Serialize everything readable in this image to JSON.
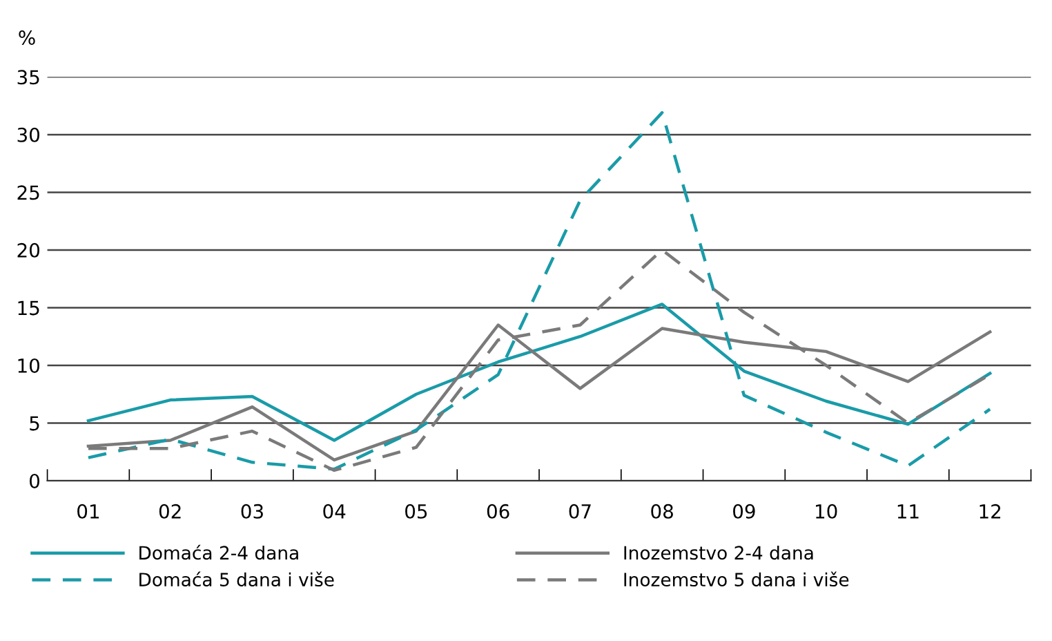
{
  "chart_data": {
    "type": "line",
    "ylabel": "%",
    "categories": [
      "01",
      "02",
      "03",
      "04",
      "05",
      "06",
      "07",
      "08",
      "09",
      "10",
      "11",
      "12"
    ],
    "series": [
      {
        "name": "Domaća 2-4 dana",
        "color": "#1a9ba8",
        "line_style": "solid",
        "values": [
          5.2,
          7.0,
          7.3,
          3.5,
          7.5,
          10.3,
          12.5,
          15.3,
          9.5,
          6.9,
          4.9,
          9.3
        ]
      },
      {
        "name": "Inozemstvo 2-4 dana",
        "color": "#7a7a7a",
        "line_style": "solid",
        "values": [
          3.0,
          3.5,
          6.4,
          1.8,
          4.3,
          13.5,
          8.0,
          13.2,
          12.0,
          11.2,
          8.6,
          12.9
        ]
      },
      {
        "name": "Domaća 5 dana i više",
        "color": "#1a9ba8",
        "line_style": "dashed",
        "values": [
          2.0,
          3.6,
          1.6,
          1.0,
          4.4,
          9.2,
          24.3,
          31.9,
          7.4,
          4.2,
          1.3,
          6.2
        ]
      },
      {
        "name": "Inozemstvo 5 dana i više",
        "color": "#7a7a7a",
        "line_style": "dashed",
        "values": [
          2.8,
          2.8,
          4.3,
          0.9,
          2.9,
          12.2,
          13.5,
          20.0,
          14.6,
          10.0,
          5.0,
          9.2
        ]
      }
    ],
    "ylim": [
      0,
      35
    ],
    "yticks": [
      0,
      5,
      10,
      15,
      20,
      25,
      30,
      35
    ],
    "grid": "y",
    "legend": "bottom"
  }
}
